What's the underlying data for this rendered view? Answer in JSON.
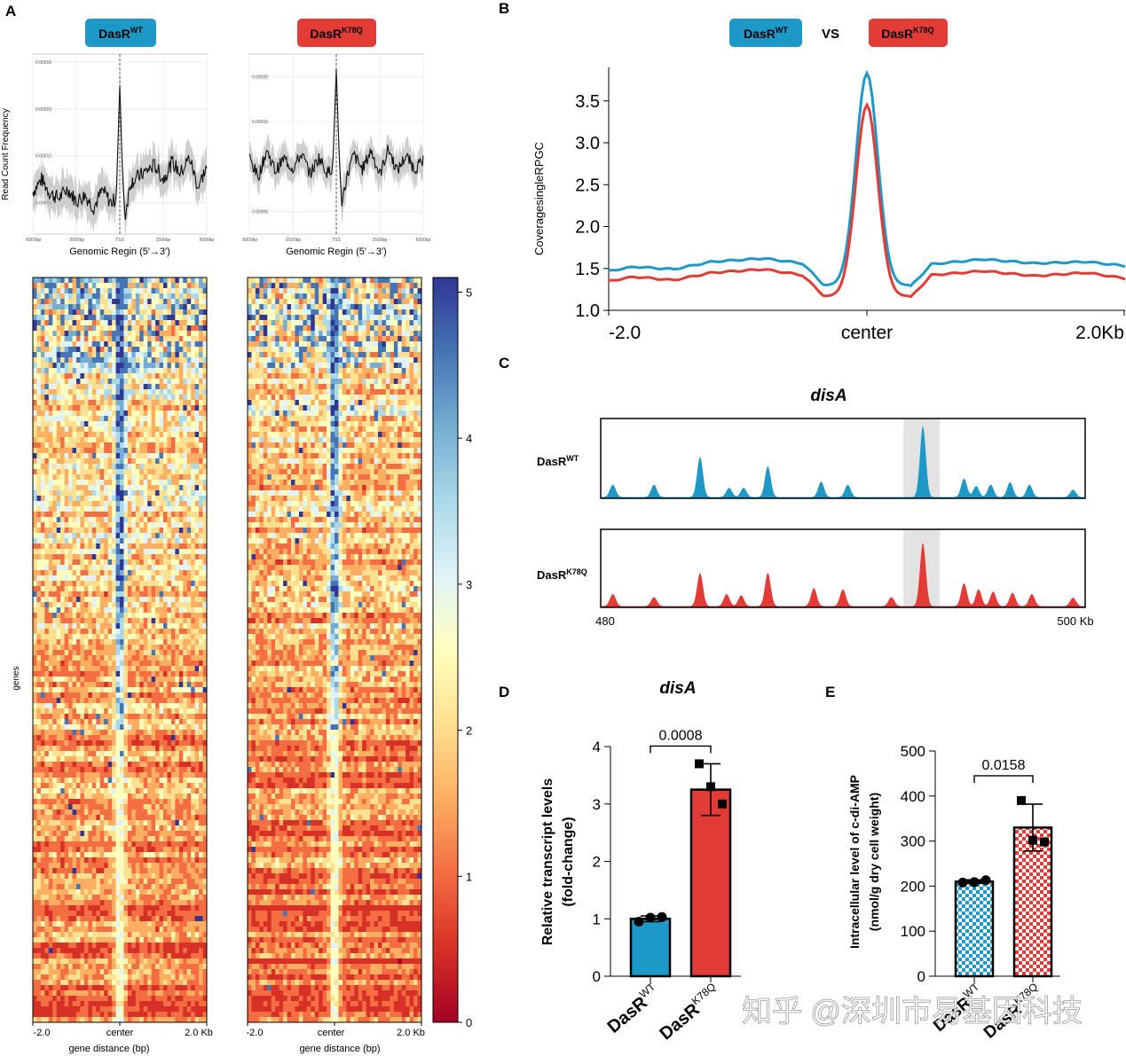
{
  "panel_letters": {
    "a": "A",
    "b": "B",
    "c": "C",
    "d": "D",
    "e": "E"
  },
  "colors": {
    "wt": "#1e98c7",
    "k78q": "#e33b36",
    "grid": "#ececec"
  },
  "labels": {
    "wt_base": "DasR",
    "wt_sup": "WT",
    "k78q_base": "DasR",
    "k78q_sup": "K78Q",
    "vs": "VS"
  },
  "watermark": "知乎 @深圳市易基因科技",
  "chart_data": [
    {
      "id": "A-profile-wt",
      "type": "line",
      "title": "DasR WT",
      "xlabel": "Genomic Regin (5′→3′)",
      "ylabel": "Read Count Frequency",
      "x_ticks": [
        "-5000bp",
        "-2500bp",
        "TSS",
        "2500bp",
        "5000bp"
      ],
      "y_ticks": [
        "0.00009",
        "0.00012",
        "0.00015",
        "0.00018"
      ],
      "ylim": [
        7e-05,
        0.000185
      ],
      "xlim": [
        -5000,
        5000
      ],
      "profile": [
        [
          -5000,
          9.7e-05
        ],
        [
          -4500,
          0.000105
        ],
        [
          -4000,
          9.6e-05
        ],
        [
          -3500,
          9.3e-05
        ],
        [
          -3000,
          9.9e-05
        ],
        [
          -2500,
          9.1e-05
        ],
        [
          -2000,
          9.5e-05
        ],
        [
          -1500,
          8.7e-05
        ],
        [
          -1000,
          9.8e-05
        ],
        [
          -500,
          9e-05
        ],
        [
          -200,
          9.3e-05
        ],
        [
          0,
          0.000165
        ],
        [
          150,
          0.00011
        ],
        [
          300,
          8.1e-05
        ],
        [
          600,
          0.000103
        ],
        [
          1000,
          0.000106
        ],
        [
          1500,
          0.00011
        ],
        [
          2000,
          0.000114
        ],
        [
          2500,
          0.000105
        ],
        [
          3000,
          0.000116
        ],
        [
          3500,
          0.000109
        ],
        [
          4000,
          0.000119
        ],
        [
          4500,
          0.0001
        ],
        [
          5000,
          0.000113
        ]
      ],
      "band_halfwidth": 1.1e-05
    },
    {
      "id": "A-profile-k78q",
      "type": "line",
      "title": "DasR K78Q",
      "xlabel": "Genomic Regin (5′→3′)",
      "ylabel": "",
      "x_ticks": [
        "-5000bp",
        "-2500bp",
        "TSS",
        "2500bp",
        "5000bp"
      ],
      "y_ticks": [
        "0.00005",
        "0.00010",
        "0.00015",
        "0.00020"
      ],
      "ylim": [
        2.5e-05,
        0.000225
      ],
      "xlim": [
        -5000,
        5000
      ],
      "profile": [
        [
          -5000,
          0.00011
        ],
        [
          -4500,
          8.8e-05
        ],
        [
          -4000,
          0.000118
        ],
        [
          -3500,
          9.5e-05
        ],
        [
          -3000,
          0.000109
        ],
        [
          -2500,
          9.8e-05
        ],
        [
          -2000,
          0.000114
        ],
        [
          -1500,
          9.2e-05
        ],
        [
          -1000,
          0.00011
        ],
        [
          -500,
          9.3e-05
        ],
        [
          -200,
          0.0001
        ],
        [
          0,
          0.000208
        ],
        [
          150,
          0.00012
        ],
        [
          300,
          6e-05
        ],
        [
          600,
          8.8e-05
        ],
        [
          1000,
          0.000113
        ],
        [
          1500,
          9.7e-05
        ],
        [
          2000,
          0.000118
        ],
        [
          2500,
          9.1e-05
        ],
        [
          3000,
          0.00012
        ],
        [
          3500,
          9.5e-05
        ],
        [
          4000,
          0.000112
        ],
        [
          4500,
          9.8e-05
        ],
        [
          5000,
          0.000105
        ]
      ],
      "band_halfwidth": 1.6e-05
    },
    {
      "id": "A-heatmaps",
      "type": "heatmap",
      "ylabel": "genes",
      "xlabel": "gene distance (bp)",
      "x_ticks": [
        "-2.0",
        "center",
        "2.0 Kb"
      ],
      "colorbar_ticks": [
        "0",
        "1",
        "2",
        "3",
        "4",
        "5"
      ],
      "value_range": [
        0,
        5.1
      ],
      "colormap": [
        "#a50026",
        "#d73027",
        "#f46d43",
        "#fdae61",
        "#fee090",
        "#ffffbf",
        "#e0f3f8",
        "#abd9e9",
        "#74add1",
        "#4575b4",
        "#313695"
      ]
    },
    {
      "id": "B-coverage",
      "type": "line",
      "ylabel": "CoveragesingleRPGC",
      "x_ticks": [
        "-2.0",
        "center",
        "2.0Kb"
      ],
      "y_ticks": [
        "1.0",
        "1.5",
        "2.0",
        "2.5",
        "3.0",
        "3.5"
      ],
      "ylim": [
        1.0,
        3.9
      ],
      "xlim": [
        -2.0,
        2.0
      ],
      "series": [
        {
          "name": "DasR WT",
          "points": [
            [
              -2.0,
              1.47
            ],
            [
              -1.8,
              1.52
            ],
            [
              -1.5,
              1.49
            ],
            [
              -1.2,
              1.58
            ],
            [
              -0.8,
              1.62
            ],
            [
              -0.5,
              1.56
            ],
            [
              -0.33,
              1.3
            ],
            [
              -0.15,
              2.7
            ],
            [
              0.0,
              3.83
            ],
            [
              0.15,
              2.7
            ],
            [
              0.33,
              1.27
            ],
            [
              0.5,
              1.55
            ],
            [
              0.9,
              1.61
            ],
            [
              1.3,
              1.56
            ],
            [
              1.7,
              1.58
            ],
            [
              2.0,
              1.53
            ]
          ]
        },
        {
          "name": "DasR K78Q",
          "points": [
            [
              -2.0,
              1.35
            ],
            [
              -1.8,
              1.4
            ],
            [
              -1.5,
              1.36
            ],
            [
              -1.2,
              1.45
            ],
            [
              -0.8,
              1.49
            ],
            [
              -0.5,
              1.42
            ],
            [
              -0.33,
              1.17
            ],
            [
              -0.15,
              2.55
            ],
            [
              0.0,
              3.45
            ],
            [
              0.15,
              2.55
            ],
            [
              0.33,
              1.14
            ],
            [
              0.5,
              1.42
            ],
            [
              0.9,
              1.47
            ],
            [
              1.3,
              1.41
            ],
            [
              1.7,
              1.45
            ],
            [
              2.0,
              1.38
            ]
          ]
        }
      ]
    },
    {
      "id": "C-tracks",
      "type": "area",
      "title": "disA",
      "x_ticks": [
        "480",
        "500 Kb"
      ],
      "xlim": [
        480,
        500
      ],
      "highlight": [
        492.5,
        494.0
      ],
      "peaks_wt": [
        [
          480.5,
          0.2
        ],
        [
          482.2,
          0.2
        ],
        [
          484.1,
          0.65
        ],
        [
          485.3,
          0.15
        ],
        [
          485.9,
          0.15
        ],
        [
          486.9,
          0.5
        ],
        [
          489.1,
          0.25
        ],
        [
          490.2,
          0.2
        ],
        [
          493.3,
          1.15
        ],
        [
          495.0,
          0.3
        ],
        [
          495.5,
          0.18
        ],
        [
          496.1,
          0.2
        ],
        [
          496.9,
          0.24
        ],
        [
          497.7,
          0.2
        ],
        [
          499.5,
          0.12
        ]
      ],
      "peaks_k78q": [
        [
          480.5,
          0.2
        ],
        [
          482.2,
          0.15
        ],
        [
          484.1,
          0.55
        ],
        [
          485.2,
          0.2
        ],
        [
          485.8,
          0.18
        ],
        [
          486.9,
          0.55
        ],
        [
          488.8,
          0.3
        ],
        [
          490.0,
          0.28
        ],
        [
          492.0,
          0.15
        ],
        [
          493.3,
          1.05
        ],
        [
          495.0,
          0.38
        ],
        [
          495.6,
          0.28
        ],
        [
          496.2,
          0.24
        ],
        [
          497.0,
          0.22
        ],
        [
          497.8,
          0.2
        ],
        [
          499.5,
          0.14
        ]
      ]
    },
    {
      "id": "D-transcript",
      "type": "bar",
      "title": "disA",
      "ylabel_line1": "Relative transcript levels",
      "ylabel_line2": "(fold-change)",
      "categories": [
        "DasR WT",
        "DasR K78Q"
      ],
      "values": [
        1.0,
        3.25
      ],
      "errors": [
        0.05,
        0.45
      ],
      "points": [
        [
          0.95,
          1.03,
          1.02
        ],
        [
          3.7,
          3.0,
          3.3
        ]
      ],
      "y_ticks": [
        "0",
        "1",
        "2",
        "3",
        "4"
      ],
      "ylim": [
        0,
        4
      ],
      "pvalue": "0.0008"
    },
    {
      "id": "E-cdiamp",
      "type": "bar",
      "ylabel_line1": "Intracellular level of c-di-AMP",
      "ylabel_line2": "(nmol/g dry cell weight)",
      "categories": [
        "DasR WT",
        "DasR K78Q"
      ],
      "values": [
        210,
        330
      ],
      "errors": [
        4,
        52
      ],
      "points": [
        [
          208,
          213,
          209
        ],
        [
          390,
          298,
          302
        ]
      ],
      "y_ticks": [
        "0",
        "100",
        "200",
        "300",
        "400",
        "500"
      ],
      "ylim": [
        0,
        500
      ],
      "pvalue": "0.0158"
    }
  ]
}
